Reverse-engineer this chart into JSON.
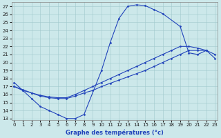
{
  "xlabel": "Graphe des températures (°c)",
  "bg_color": "#cce8ea",
  "grid_color": "#a0c8cc",
  "line_color": "#2244bb",
  "xlim": [
    -0.3,
    23.3
  ],
  "ylim": [
    12.8,
    27.5
  ],
  "xticks": [
    0,
    1,
    2,
    3,
    4,
    5,
    6,
    7,
    8,
    9,
    10,
    11,
    12,
    13,
    14,
    15,
    16,
    17,
    18,
    19,
    20,
    21,
    22,
    23
  ],
  "yticks": [
    13,
    14,
    15,
    16,
    17,
    18,
    19,
    20,
    21,
    22,
    23,
    24,
    25,
    26,
    27
  ],
  "curve1_x": [
    0,
    1,
    2,
    3,
    4,
    5,
    6,
    7,
    8,
    10,
    11,
    12,
    13,
    14,
    15,
    16,
    17,
    19,
    20,
    21,
    22
  ],
  "curve1_y": [
    17.5,
    16.5,
    15.5,
    14.5,
    14.0,
    13.5,
    13.0,
    13.0,
    13.5,
    19.0,
    22.5,
    25.5,
    27.0,
    27.2,
    27.1,
    26.6,
    26.1,
    24.5,
    21.2,
    21.0,
    21.5
  ],
  "curve2_x": [
    0,
    1,
    2,
    3,
    4,
    5,
    6,
    7,
    8,
    9,
    10,
    11,
    12,
    13,
    14,
    15,
    16,
    17,
    18,
    19,
    20,
    21,
    22,
    23
  ],
  "curve2_y": [
    17.0,
    16.5,
    16.2,
    15.8,
    15.6,
    15.5,
    15.5,
    15.8,
    16.2,
    16.5,
    17.0,
    17.4,
    17.8,
    18.2,
    18.6,
    19.0,
    19.5,
    20.0,
    20.5,
    21.0,
    21.5,
    21.5,
    21.5,
    21.0
  ],
  "curve3_x": [
    0,
    1,
    2,
    3,
    4,
    5,
    6,
    7,
    8,
    9,
    10,
    11,
    12,
    13,
    14,
    15,
    16,
    17,
    18,
    19,
    20,
    21,
    22,
    23
  ],
  "curve3_y": [
    17.0,
    16.6,
    16.2,
    15.9,
    15.7,
    15.6,
    15.6,
    16.0,
    16.5,
    17.0,
    17.5,
    18.0,
    18.5,
    19.0,
    19.5,
    20.0,
    20.5,
    21.0,
    21.5,
    22.0,
    22.0,
    21.8,
    21.5,
    20.5
  ],
  "tick_fontsize": 5,
  "xlabel_fontsize": 6,
  "xlabel_color": "#2244bb",
  "spine_color": "#888888",
  "marker": "D",
  "markersize": 1.5,
  "linewidth": 0.8
}
